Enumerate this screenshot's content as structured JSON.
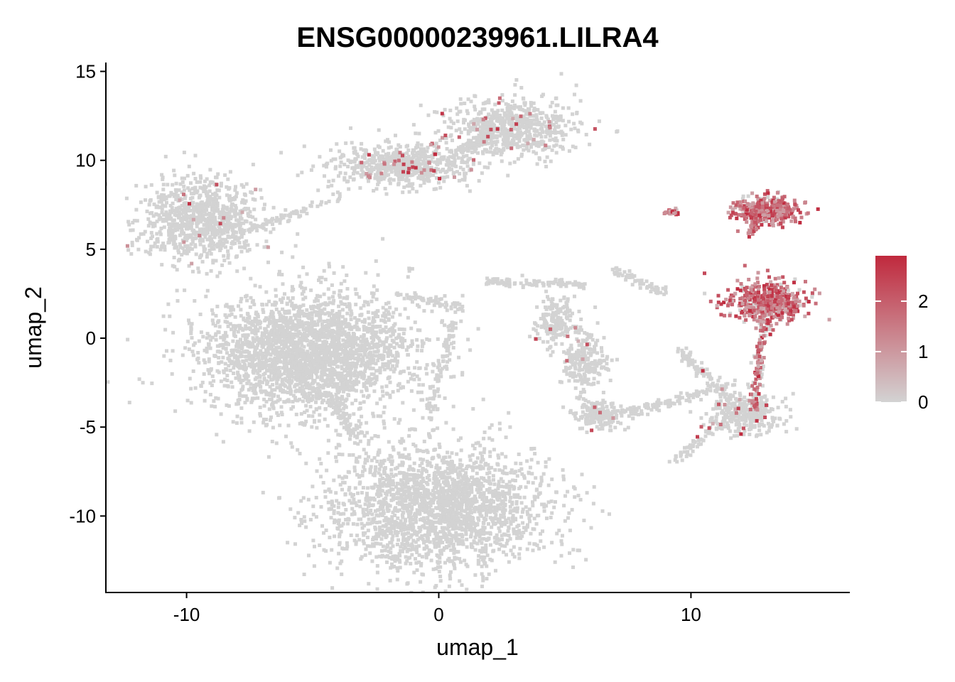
{
  "chart_data": {
    "type": "scatter",
    "title": "ENSG00000239961.LILRA4",
    "xlabel": "umap_1",
    "ylabel": "umap_2",
    "xlim": [
      -13.2,
      16.3
    ],
    "ylim": [
      -14.3,
      15.5
    ],
    "x_ticks": [
      -10,
      0,
      10
    ],
    "x_tick_labels": [
      "-10",
      "0",
      "10"
    ],
    "y_ticks": [
      -10,
      -5,
      0,
      5,
      10,
      15
    ],
    "y_tick_labels": [
      "-10",
      "-5",
      "0",
      "5",
      "10",
      "15"
    ],
    "grid": false,
    "legend_position": "right",
    "colorscale": {
      "low_color": "#d3d3d3",
      "high_color": "#c0293d",
      "min": 0,
      "max": 2.9,
      "ticks": [
        0,
        1,
        2
      ],
      "tick_labels": [
        "0",
        "1",
        "2"
      ]
    },
    "clusters": [
      {
        "name": "c1",
        "cx": -5.1,
        "cy": -0.8,
        "sx": 2.3,
        "sy": 1.9,
        "n": 2600,
        "expr": 0,
        "color": "#d3d3d3"
      },
      {
        "name": "c2",
        "cx": 0.0,
        "cy": -9.5,
        "sx": 2.4,
        "sy": 1.9,
        "n": 2200,
        "expr": 0,
        "color": "#d3d3d3"
      },
      {
        "name": "c3",
        "cx": -9.4,
        "cy": 6.7,
        "sx": 1.3,
        "sy": 1.3,
        "n": 900,
        "expr": 0.02,
        "color": "#d3d3d3"
      },
      {
        "name": "c4",
        "cx": -1.6,
        "cy": 9.7,
        "sx": 1.6,
        "sy": 0.65,
        "n": 650,
        "expr": 0.06,
        "color": "#d3d3d3"
      },
      {
        "name": "c5",
        "cx": 2.8,
        "cy": 11.8,
        "sx": 1.4,
        "sy": 0.9,
        "n": 650,
        "expr": 0.03,
        "color": "#d3d3d3"
      },
      {
        "name": "c6",
        "cx": 4.6,
        "cy": 0.9,
        "sx": 0.45,
        "sy": 0.8,
        "n": 180,
        "expr": 0.02,
        "color": "#d3d3d3"
      },
      {
        "name": "c7",
        "cx": 5.8,
        "cy": -1.3,
        "sx": 0.5,
        "sy": 0.9,
        "n": 220,
        "expr": 0.02,
        "color": "#d3d3d3"
      },
      {
        "name": "c8",
        "cx": 6.4,
        "cy": -4.3,
        "sx": 0.6,
        "sy": 0.45,
        "n": 180,
        "expr": 0.02,
        "color": "#d3d3d3"
      },
      {
        "name": "c9",
        "cx": 12.2,
        "cy": -4.3,
        "sx": 0.8,
        "sy": 0.6,
        "n": 300,
        "expr": 0.05,
        "color": "#d3d3d3"
      },
      {
        "name": "c10",
        "cx": 13.0,
        "cy": 7.2,
        "sx": 0.65,
        "sy": 0.4,
        "n": 380,
        "expr": 0.88,
        "color": "#d3d3d3"
      },
      {
        "name": "c11",
        "cx": 13.1,
        "cy": 2.0,
        "sx": 0.8,
        "sy": 0.6,
        "n": 520,
        "expr": 0.85,
        "color": "#d3d3d3"
      },
      {
        "name": "c12",
        "cx": 9.2,
        "cy": 7.1,
        "sx": 0.15,
        "sy": 0.1,
        "n": 25,
        "expr": 0.9,
        "color": "#d3d3d3"
      }
    ],
    "bridges": [
      {
        "name": "b1",
        "from": [
          -7.8,
          5.9
        ],
        "to": [
          -4.0,
          7.9
        ],
        "n": 70,
        "expr": 0
      },
      {
        "name": "b2",
        "from": [
          0.8,
          10.6
        ],
        "to": [
          2.2,
          11.5
        ],
        "n": 70,
        "expr": 0
      },
      {
        "name": "b3",
        "from": [
          -1.5,
          2.5
        ],
        "to": [
          1.0,
          1.7
        ],
        "n": 60,
        "expr": 0
      },
      {
        "name": "b4",
        "from": [
          0.6,
          1.0
        ],
        "to": [
          -0.4,
          -4.5
        ],
        "n": 90,
        "expr": 0
      },
      {
        "name": "b5",
        "from": [
          1.8,
          3.2
        ],
        "to": [
          5.8,
          3.0
        ],
        "n": 100,
        "expr": 0
      },
      {
        "name": "b6",
        "from": [
          7.2,
          -4.3
        ],
        "to": [
          11.8,
          -2.6
        ],
        "n": 110,
        "expr": 0.01
      },
      {
        "name": "b7",
        "from": [
          9.4,
          -0.5
        ],
        "to": [
          11.6,
          -3.5
        ],
        "n": 90,
        "expr": 0.02
      },
      {
        "name": "b8",
        "from": [
          12.9,
          1.0
        ],
        "to": [
          12.5,
          -4.0
        ],
        "n": 130,
        "expr": 0.55
      },
      {
        "name": "b9",
        "from": [
          12.0,
          -3.8
        ],
        "to": [
          9.3,
          -7.0
        ],
        "n": 90,
        "expr": 0.02
      },
      {
        "name": "b10",
        "from": [
          12.7,
          6.8
        ],
        "to": [
          12.3,
          5.7
        ],
        "n": 30,
        "expr": 0.8
      },
      {
        "name": "b11",
        "from": [
          6.9,
          3.8
        ],
        "to": [
          9.0,
          2.5
        ],
        "n": 60,
        "expr": 0
      },
      {
        "name": "b12",
        "from": [
          -4.5,
          -3.0
        ],
        "to": [
          -3.2,
          -5.8
        ],
        "n": 80,
        "expr": 0
      }
    ]
  }
}
